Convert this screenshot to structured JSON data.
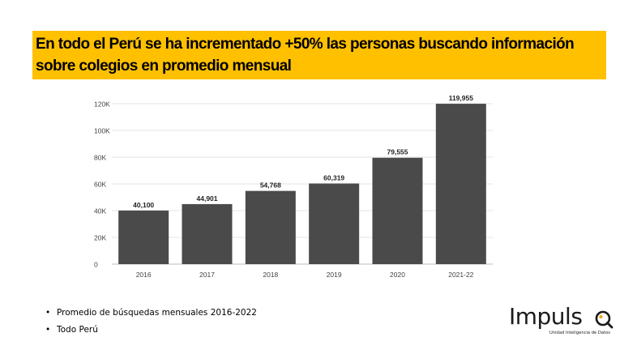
{
  "title": {
    "line1": "En todo el Perú se ha incrementado +50% las personas buscando información",
    "line2": "sobre colegios en promedio mensual"
  },
  "chart_data": {
    "type": "bar",
    "categories": [
      "2016",
      "2017",
      "2018",
      "2019",
      "2020",
      "2021-22"
    ],
    "values": [
      40100,
      44901,
      54768,
      60319,
      79555,
      119955
    ],
    "value_labels": [
      "40,100",
      "44,901",
      "54,768",
      "60,319",
      "79,555",
      "119,955"
    ],
    "y_ticks": [
      0,
      20000,
      40000,
      60000,
      80000,
      100000,
      120000
    ],
    "y_tick_labels": [
      "0",
      "20K",
      "40K",
      "60K",
      "80K",
      "100K",
      "120K"
    ],
    "ylim": [
      0,
      120000
    ],
    "grid": true,
    "legend": "none",
    "bar_color": "#4a4a4a"
  },
  "notes": [
    "Promedio de búsquedas mensuales 2016-2022",
    "Todo Perú"
  ],
  "logo": {
    "text": "Impuls",
    "subtitle": "Unidad Inteligencia de Datos",
    "accent_color": "#F5A623"
  }
}
